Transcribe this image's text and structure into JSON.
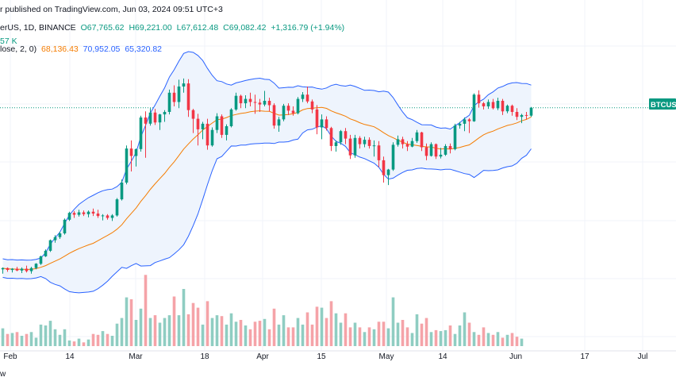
{
  "header": {
    "published": "r published on TradingView.com, Jun 03, 2024 09:51 UTC+3",
    "symbol": "erUS, 1D, BINANCE",
    "open": "O67,765.62",
    "high": "H69,221.00",
    "low": "L67,612.48",
    "close": "C69,082.42",
    "change": "+1,316.79 (+1.94%)",
    "volume": "57 K",
    "bb_label": "lose, 2, 0)",
    "bb_basis": "68,136.43",
    "bb_upper": "70,952.05",
    "bb_lower": "65,320.82"
  },
  "price_tag": {
    "label": "BTCUSD",
    "color": "#089981"
  },
  "footer": {
    "text": "w"
  },
  "colors": {
    "up": "#089981",
    "down": "#f23645",
    "vol_up": "#8fcdc2",
    "vol_down": "#f5a3a8",
    "bb_band": "#2962ff",
    "bb_basis": "#f57c00",
    "bb_fill": "#eef4fd"
  },
  "chart_data": {
    "type": "candlestick",
    "x_ticks": [
      "Feb",
      "14",
      "Mar",
      "18",
      "Apr",
      "15",
      "May",
      "14",
      "Jun",
      "17",
      "Jul"
    ],
    "last_price": 69082.42,
    "y_range_estimated": [
      36500,
      77500
    ],
    "series": [
      {
        "name": "ohlc",
        "values": [
          [
            43000,
            43300,
            42300,
            43200
          ],
          [
            43200,
            43300,
            42600,
            42900
          ],
          [
            42900,
            43200,
            42500,
            43100
          ],
          [
            43100,
            43400,
            42700,
            42800
          ],
          [
            42800,
            43300,
            42400,
            43100
          ],
          [
            43100,
            43600,
            42500,
            42700
          ],
          [
            42700,
            43400,
            42300,
            43200
          ],
          [
            43200,
            44000,
            43000,
            43900
          ],
          [
            43900,
            45200,
            43700,
            45100
          ],
          [
            45100,
            46200,
            45000,
            46000
          ],
          [
            46000,
            47800,
            45800,
            47700
          ],
          [
            47700,
            48500,
            47300,
            48200
          ],
          [
            48200,
            49100,
            47900,
            48800
          ],
          [
            48800,
            51200,
            48600,
            51000
          ],
          [
            51000,
            52300,
            50800,
            52100
          ],
          [
            52100,
            52400,
            51300,
            51800
          ],
          [
            51800,
            52600,
            51500,
            52200
          ],
          [
            52200,
            52500,
            51600,
            51900
          ],
          [
            51900,
            52500,
            51400,
            52300
          ],
          [
            52300,
            52800,
            51600,
            52000
          ],
          [
            52000,
            52600,
            51300,
            51600
          ],
          [
            51600,
            51900,
            50900,
            51700
          ],
          [
            51700,
            51900,
            51000,
            51300
          ],
          [
            51300,
            51900,
            50800,
            51700
          ],
          [
            51700,
            54500,
            51500,
            54300
          ],
          [
            54300,
            57500,
            54100,
            57000
          ],
          [
            57000,
            63000,
            56700,
            62500
          ],
          [
            62500,
            63800,
            58800,
            61300
          ],
          [
            61300,
            62500,
            59600,
            62400
          ],
          [
            62400,
            67800,
            62000,
            67500
          ],
          [
            67500,
            68500,
            61000,
            66500
          ],
          [
            66500,
            69000,
            66200,
            68300
          ],
          [
            68300,
            68900,
            66300,
            66700
          ],
          [
            66700,
            68100,
            65500,
            68000
          ],
          [
            68000,
            68700,
            66800,
            68400
          ],
          [
            68400,
            72000,
            68000,
            71500
          ],
          [
            71500,
            72700,
            69300,
            70000
          ],
          [
            70000,
            73600,
            69000,
            72500
          ],
          [
            72500,
            73800,
            71500,
            73000
          ],
          [
            73000,
            73700,
            67600,
            68700
          ],
          [
            68700,
            68900,
            65000,
            67300
          ],
          [
            67300,
            68100,
            63000,
            65600
          ],
          [
            65600,
            66800,
            64000,
            66500
          ],
          [
            66500,
            67300,
            62300,
            63000
          ],
          [
            63000,
            65900,
            62800,
            65500
          ],
          [
            65500,
            68200,
            65000,
            67700
          ],
          [
            67700,
            68000,
            64200,
            64700
          ],
          [
            64700,
            66400,
            63800,
            66100
          ],
          [
            66100,
            69000,
            65900,
            68800
          ],
          [
            68800,
            71500,
            68600,
            71000
          ],
          [
            71000,
            71200,
            69000,
            69800
          ],
          [
            69800,
            71100,
            69000,
            70500
          ],
          [
            70500,
            71500,
            69300,
            70000
          ],
          [
            70000,
            71200,
            68100,
            69900
          ],
          [
            69900,
            70500,
            68400,
            69600
          ],
          [
            69600,
            71800,
            69300,
            70200
          ],
          [
            70200,
            70700,
            68500,
            69500
          ],
          [
            69500,
            69800,
            65700,
            66200
          ],
          [
            66200,
            67600,
            65200,
            67200
          ],
          [
            67200,
            69700,
            66900,
            69400
          ],
          [
            69400,
            69800,
            67900,
            68600
          ],
          [
            68600,
            69300,
            67800,
            68200
          ],
          [
            68200,
            70800,
            68000,
            70500
          ],
          [
            70500,
            71600,
            70000,
            71200
          ],
          [
            71200,
            72500,
            69800,
            70100
          ],
          [
            70100,
            70400,
            68200,
            68800
          ],
          [
            68800,
            69500,
            64800,
            65900
          ],
          [
            65900,
            68000,
            64000,
            67200
          ],
          [
            67200,
            67700,
            65400,
            65800
          ],
          [
            65800,
            66000,
            62100,
            62900
          ],
          [
            62900,
            63800,
            62000,
            63500
          ],
          [
            63500,
            65500,
            63100,
            65300
          ],
          [
            65300,
            65800,
            63200,
            64100
          ],
          [
            64100,
            64700,
            60800,
            61400
          ],
          [
            61400,
            64700,
            61000,
            64200
          ],
          [
            64200,
            64500,
            62500,
            63200
          ],
          [
            63200,
            64400,
            62700,
            63900
          ],
          [
            63900,
            64300,
            62500,
            62900
          ],
          [
            62900,
            63800,
            61200,
            63000
          ],
          [
            63000,
            63700,
            59500,
            60600
          ],
          [
            60600,
            61200,
            57000,
            58200
          ],
          [
            58200,
            59200,
            56600,
            59100
          ],
          [
            59100,
            63500,
            58900,
            63100
          ],
          [
            63100,
            64600,
            62800,
            64000
          ],
          [
            64000,
            64400,
            62500,
            63200
          ],
          [
            63200,
            63700,
            62100,
            62800
          ],
          [
            62800,
            64200,
            62700,
            63700
          ],
          [
            63700,
            65500,
            63400,
            65100
          ],
          [
            65100,
            65200,
            62100,
            62700
          ],
          [
            62700,
            63300,
            60600,
            61300
          ],
          [
            61300,
            63500,
            61200,
            63200
          ],
          [
            63200,
            63300,
            60800,
            61200
          ],
          [
            61200,
            62600,
            60900,
            61500
          ],
          [
            61500,
            63200,
            61300,
            62900
          ],
          [
            62900,
            63300,
            61700,
            62400
          ],
          [
            62400,
            66500,
            62200,
            66200
          ],
          [
            66200,
            66800,
            65700,
            66500
          ],
          [
            66500,
            67500,
            65300,
            67200
          ],
          [
            67200,
            67400,
            65000,
            66900
          ],
          [
            66900,
            71400,
            66800,
            71200
          ],
          [
            71200,
            71900,
            69100,
            69800
          ],
          [
            69800,
            70000,
            68800,
            69300
          ],
          [
            69300,
            70400,
            68900,
            70000
          ],
          [
            70000,
            70500,
            68800,
            69000
          ],
          [
            69000,
            70700,
            68700,
            70200
          ],
          [
            70200,
            70500,
            67900,
            68500
          ],
          [
            68500,
            69600,
            68200,
            69400
          ],
          [
            69400,
            69600,
            67800,
            68400
          ],
          [
            68400,
            69000,
            67100,
            67600
          ],
          [
            67600,
            68100,
            66600,
            67900
          ],
          [
            67900,
            68400,
            67200,
            67800
          ],
          [
            67800,
            69200,
            67600,
            69100
          ]
        ]
      },
      {
        "name": "volume",
        "values": [
          0.19,
          0.13,
          0.14,
          0.15,
          0.11,
          0.13,
          0.15,
          0.09,
          0.23,
          0.22,
          0.27,
          0.18,
          0.12,
          0.18,
          0.06,
          0.05,
          0.08,
          0.04,
          0.07,
          0.13,
          0.12,
          0.16,
          0.13,
          0.11,
          0.24,
          0.3,
          0.52,
          0.5,
          0.28,
          0.4,
          0.76,
          0.3,
          0.33,
          0.25,
          0.3,
          0.33,
          0.53,
          0.33,
          0.61,
          0.34,
          0.46,
          0.41,
          0.23,
          0.48,
          0.3,
          0.33,
          0.32,
          0.23,
          0.35,
          0.26,
          0.28,
          0.22,
          0.18,
          0.26,
          0.27,
          0.29,
          0.18,
          0.4,
          0.23,
          0.33,
          0.2,
          0.2,
          0.3,
          0.23,
          0.36,
          0.23,
          0.42,
          0.41,
          0.3,
          0.48,
          0.35,
          0.25,
          0.35,
          0.2,
          0.25,
          0.2,
          0.15,
          0.2,
          0.18,
          0.26,
          0.26,
          0.19,
          0.52,
          0.25,
          0.28,
          0.2,
          0.14,
          0.34,
          0.24,
          0.3,
          0.15,
          0.17,
          0.16,
          0.17,
          0.22,
          0.13,
          0.22,
          0.36,
          0.25,
          0.15,
          0.12,
          0.2,
          0.14,
          0.12,
          0.15,
          0.09,
          0.12,
          0.14,
          0.1,
          0.08
        ]
      }
    ]
  }
}
